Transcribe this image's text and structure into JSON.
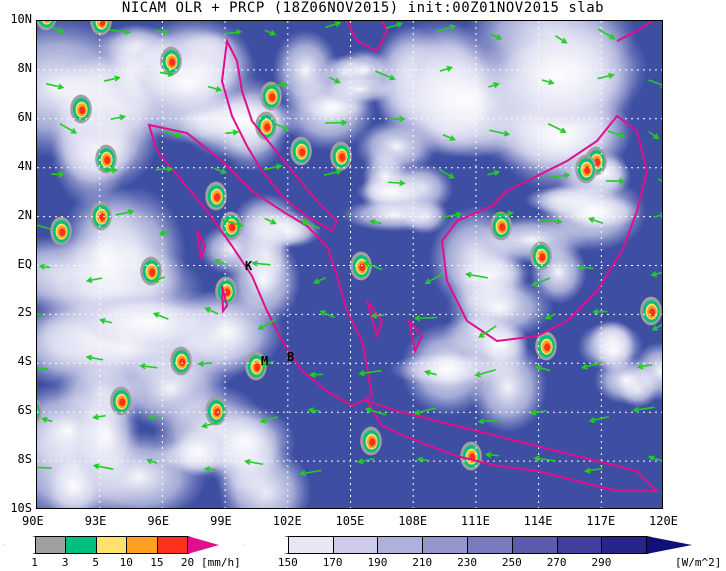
{
  "title": "NICAM OLR + PRCP (18Z06NOV2015) init:00Z01NOV2015 slab",
  "lat_labels": [
    "10N",
    "8N",
    "6N",
    "4N",
    "2N",
    "EQ",
    "2S",
    "4S",
    "6S",
    "8S",
    "10S"
  ],
  "lon_labels": [
    "90E",
    "93E",
    "96E",
    "99E",
    "102E",
    "105E",
    "108E",
    "111E",
    "114E",
    "117E",
    "120E"
  ],
  "station_labels": [
    "K",
    "M",
    "B"
  ],
  "prcp_colorbar": {
    "ticks": [
      "1",
      "3",
      "5",
      "10",
      "15",
      "20"
    ],
    "unit": "[mm/h]",
    "colors": [
      "#ffffff",
      "#a0a0a0",
      "#00c080",
      "#ffe070",
      "#ffa020",
      "#ff3020",
      "#e0108c"
    ]
  },
  "olr_colorbar": {
    "ticks": [
      "150",
      "170",
      "190",
      "210",
      "230",
      "250",
      "270",
      "290"
    ],
    "unit": "[W/m^2]",
    "colors": [
      "#ffffff",
      "#e6e6f4",
      "#ccccea",
      "#b0b0dc",
      "#9696ce",
      "#7a7abf",
      "#5c5cad",
      "#40409c",
      "#262688",
      "#10107a"
    ]
  },
  "map_colors": {
    "coastline": "#e0108c",
    "wind_vector": "#22cc22",
    "grid": "#ffffff"
  }
}
